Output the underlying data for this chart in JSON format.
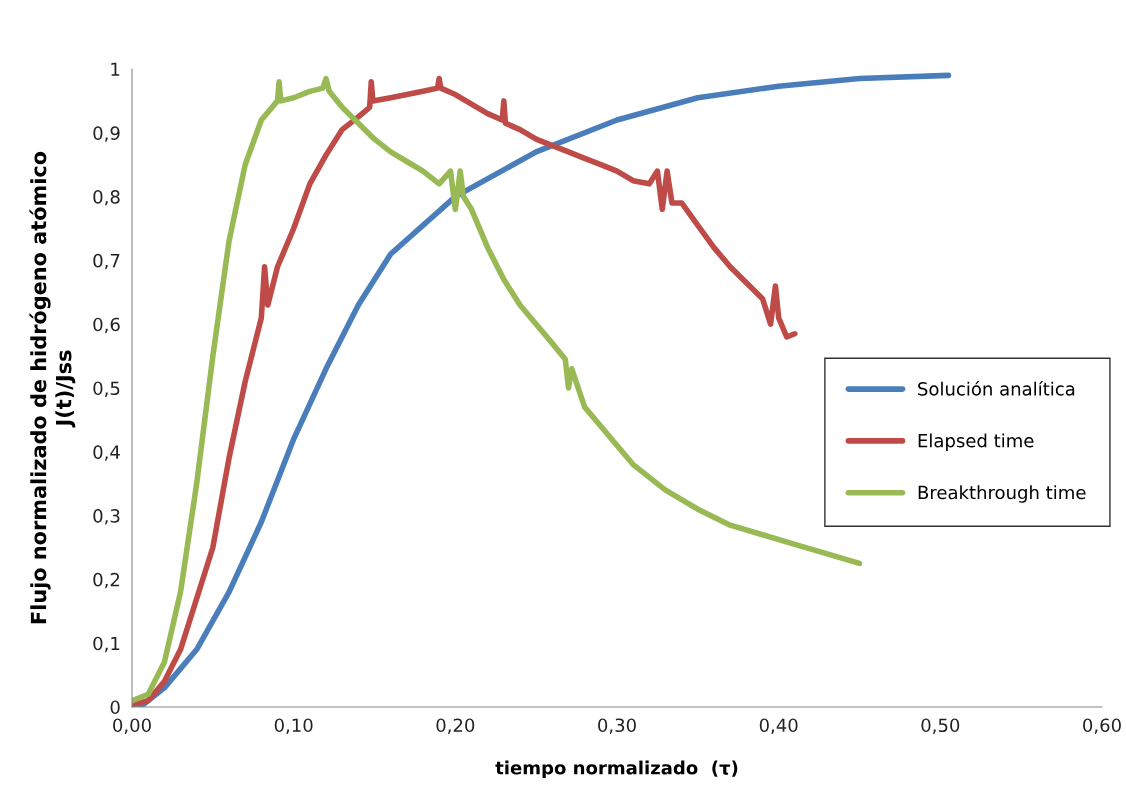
{
  "chart_data": {
    "type": "line",
    "xlabel": "tiempo normalizado  (τ)",
    "ylabel": "Flujo normalizado de hidrógeno atómico\nJ(t)/Jss",
    "xlim": [
      0,
      0.6
    ],
    "ylim": [
      0,
      1
    ],
    "xticks": [
      {
        "value": 0,
        "label": "0,00"
      },
      {
        "value": 0.1,
        "label": "0,10"
      },
      {
        "value": 0.2,
        "label": "0,20"
      },
      {
        "value": 0.3,
        "label": "0,30"
      },
      {
        "value": 0.4,
        "label": "0,40"
      },
      {
        "value": 0.5,
        "label": "0,50"
      },
      {
        "value": 0.6,
        "label": "0,60"
      }
    ],
    "yticks": [
      0,
      {
        "value": 0.1,
        "label": "0,1"
      },
      {
        "value": 0.2,
        "label": "0,2"
      },
      {
        "value": 0.3,
        "label": "0,3"
      },
      {
        "value": 0.4,
        "label": "0,4"
      },
      {
        "value": 0.5,
        "label": "0,5"
      },
      {
        "value": 0.6,
        "label": "0,6"
      },
      {
        "value": 0.7,
        "label": "0,7"
      },
      {
        "value": 0.8,
        "label": "0,8"
      },
      {
        "value": 0.9,
        "label": "0,9"
      },
      1
    ],
    "grid": false,
    "legend": "right",
    "marker": "none",
    "line_style": "solid",
    "series": [
      {
        "name": "Solución analítica",
        "color": "#4a7ebb",
        "x": [
          0.005,
          0.02,
          0.04,
          0.06,
          0.08,
          0.1,
          0.12,
          0.14,
          0.16,
          0.2,
          0.25,
          0.3,
          0.35,
          0.4,
          0.45,
          0.505
        ],
        "values": [
          0,
          0.03,
          0.09,
          0.18,
          0.29,
          0.42,
          0.53,
          0.63,
          0.71,
          0.8,
          0.87,
          0.92,
          0.955,
          0.973,
          0.985,
          0.99
        ]
      },
      {
        "name": "Elapsed time",
        "color": "#be4b48",
        "x": [
          0,
          0.01,
          0.02,
          0.03,
          0.04,
          0.05,
          0.06,
          0.07,
          0.08,
          0.082,
          0.084,
          0.09,
          0.1,
          0.11,
          0.12,
          0.13,
          0.14,
          0.147,
          0.148,
          0.149,
          0.16,
          0.17,
          0.18,
          0.189,
          0.19,
          0.191,
          0.2,
          0.21,
          0.22,
          0.229,
          0.23,
          0.231,
          0.24,
          0.25,
          0.26,
          0.27,
          0.28,
          0.29,
          0.3,
          0.31,
          0.32,
          0.325,
          0.328,
          0.331,
          0.334,
          0.34,
          0.35,
          0.36,
          0.37,
          0.38,
          0.39,
          0.395,
          0.398,
          0.4,
          0.405,
          0.41
        ],
        "values": [
          0.003,
          0.01,
          0.04,
          0.09,
          0.17,
          0.25,
          0.39,
          0.51,
          0.61,
          0.69,
          0.63,
          0.69,
          0.75,
          0.82,
          0.865,
          0.905,
          0.925,
          0.94,
          0.98,
          0.95,
          0.955,
          0.96,
          0.965,
          0.97,
          0.985,
          0.97,
          0.96,
          0.945,
          0.93,
          0.92,
          0.95,
          0.915,
          0.905,
          0.89,
          0.88,
          0.87,
          0.86,
          0.85,
          0.84,
          0.825,
          0.82,
          0.84,
          0.78,
          0.84,
          0.79,
          0.79,
          0.755,
          0.72,
          0.69,
          0.665,
          0.64,
          0.6,
          0.66,
          0.61,
          0.58,
          0.585
        ]
      },
      {
        "name": "Breakthrough time",
        "color": "#98b954",
        "x": [
          0,
          0.01,
          0.02,
          0.03,
          0.04,
          0.05,
          0.06,
          0.07,
          0.08,
          0.09,
          0.091,
          0.092,
          0.1,
          0.11,
          0.118,
          0.12,
          0.122,
          0.13,
          0.14,
          0.15,
          0.16,
          0.17,
          0.18,
          0.19,
          0.197,
          0.2,
          0.203,
          0.205,
          0.21,
          0.22,
          0.23,
          0.24,
          0.25,
          0.26,
          0.268,
          0.27,
          0.272,
          0.28,
          0.29,
          0.3,
          0.31,
          0.32,
          0.33,
          0.35,
          0.37,
          0.39,
          0.41,
          0.43,
          0.45
        ],
        "values": [
          0.01,
          0.02,
          0.07,
          0.18,
          0.35,
          0.55,
          0.73,
          0.85,
          0.92,
          0.95,
          0.98,
          0.95,
          0.955,
          0.965,
          0.97,
          0.985,
          0.965,
          0.94,
          0.915,
          0.89,
          0.87,
          0.855,
          0.84,
          0.82,
          0.84,
          0.78,
          0.84,
          0.8,
          0.78,
          0.72,
          0.67,
          0.63,
          0.6,
          0.57,
          0.545,
          0.5,
          0.53,
          0.47,
          0.44,
          0.41,
          0.38,
          0.36,
          0.34,
          0.31,
          0.285,
          0.27,
          0.255,
          0.24,
          0.225
        ]
      }
    ]
  }
}
